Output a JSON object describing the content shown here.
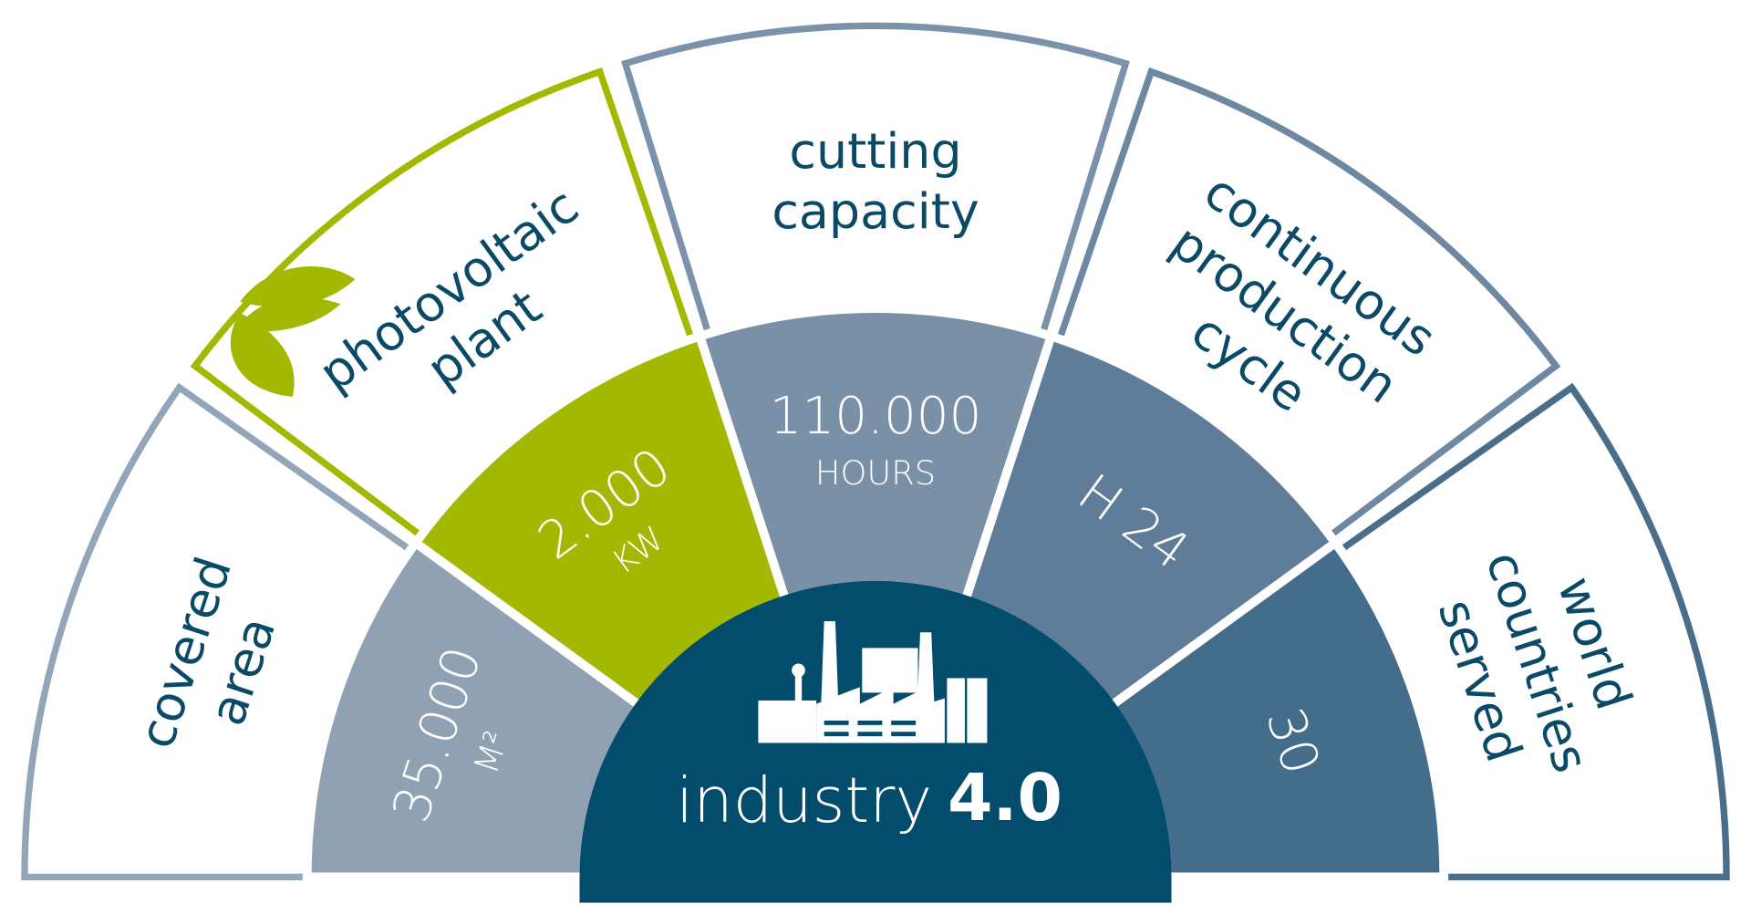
{
  "center": {
    "title": "industry",
    "title_bold": "4.0"
  },
  "segments": [
    {
      "label_lines": [
        "covered",
        "area"
      ],
      "value": "35.000",
      "unit": "M²"
    },
    {
      "label_lines": [
        "photovoltaic",
        "plant"
      ],
      "value": "2.000",
      "unit": "KW"
    },
    {
      "label_lines": [
        "cutting",
        "capacity"
      ],
      "value": "110.000",
      "unit": "HOURS"
    },
    {
      "label_lines": [
        "continuous",
        "production",
        "cycle"
      ],
      "value": "H 24"
    },
    {
      "label_lines": [
        "world",
        "countries",
        "served"
      ],
      "value": "30"
    }
  ]
}
